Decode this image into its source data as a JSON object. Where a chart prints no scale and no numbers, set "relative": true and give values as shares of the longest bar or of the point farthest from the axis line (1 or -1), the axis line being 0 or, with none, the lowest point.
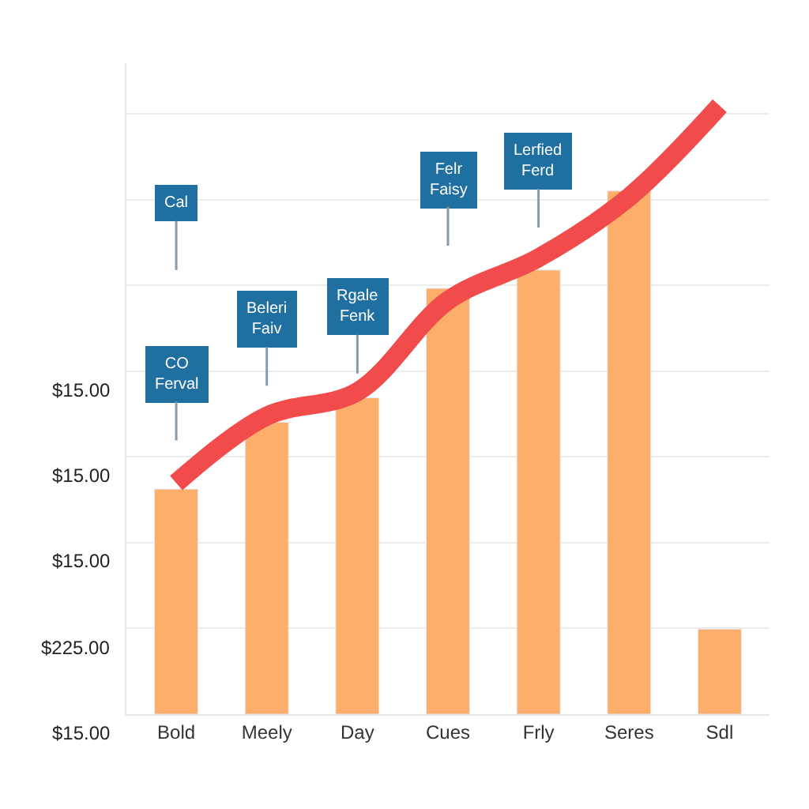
{
  "chart_data": {
    "type": "bar",
    "relative": true,
    "categories": [
      "Bold",
      "Meely",
      "Day",
      "Cues",
      "Frly",
      "Seres",
      "Sdl"
    ],
    "series": [
      {
        "color": "#fcae6a",
        "values": [
          0.37,
          0.48,
          0.52,
          0.7,
          0.73,
          0.86,
          0.14
        ]
      },
      {
        "type": "line",
        "color": "#f14b4b",
        "values": [
          0.38,
          0.49,
          0.53,
          0.68,
          0.75,
          0.85,
          1.0
        ]
      }
    ],
    "annotations": [
      "$15.00",
      "$15.00",
      "$15.00",
      "$225.00",
      "$15.00",
      "CO\nFerval",
      "Cal",
      "Beleri\nFaiv",
      "Rgale\nFenk",
      "Felr\nFaisy",
      "Lerfied\nFerd"
    ],
    "grid": "y",
    "marker": "none",
    "line_style": "solid"
  }
}
